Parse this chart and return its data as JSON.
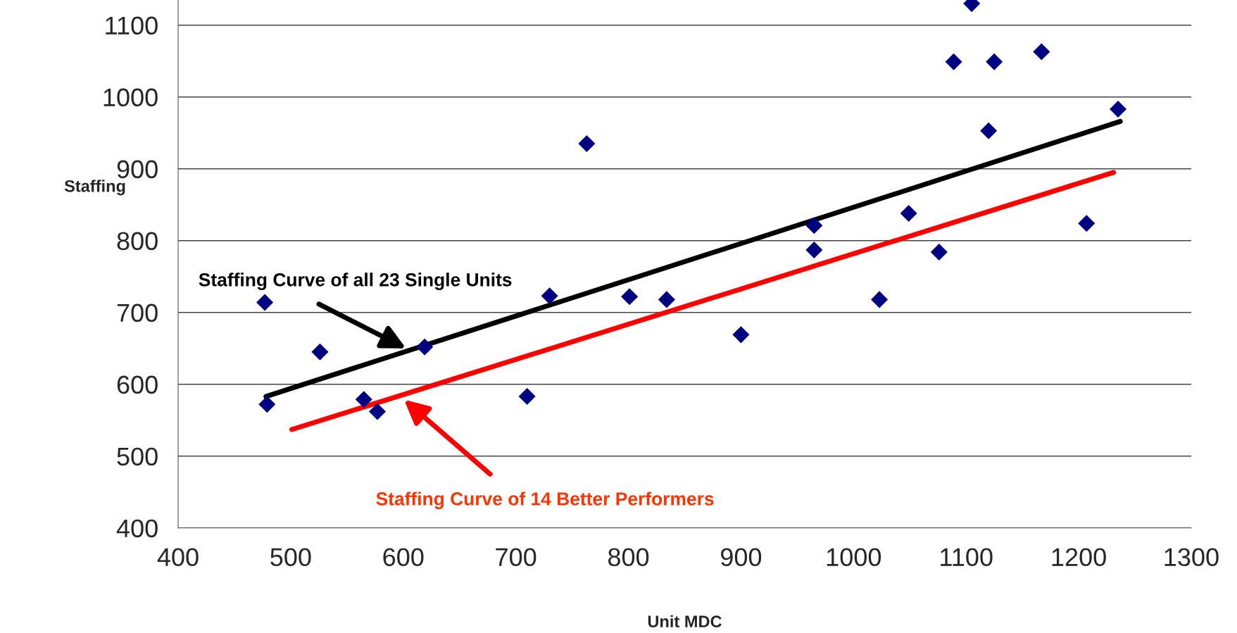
{
  "chart_data": {
    "type": "scatter",
    "xlabel": "Unit MDC",
    "ylabel": "Staffing",
    "xlim": [
      400,
      1300
    ],
    "xticks": [
      400,
      500,
      600,
      700,
      800,
      900,
      1000,
      1100,
      1200,
      1300
    ],
    "ylim": [
      400,
      1135
    ],
    "yticks": [
      400,
      500,
      600,
      700,
      800,
      900,
      1000,
      1100
    ],
    "grid": "y",
    "legend": false,
    "series": [
      {
        "color": "#000080",
        "marker": "diamond",
        "x": [
          477,
          479,
          526,
          565,
          577,
          619,
          710,
          730,
          763,
          801,
          834,
          900,
          965,
          965,
          1023,
          1049,
          1076,
          1089,
          1105,
          1120,
          1125,
          1167,
          1207,
          1235
        ],
        "values": [
          714,
          572,
          645,
          579,
          562,
          652,
          583,
          723,
          935,
          722,
          718,
          669,
          821,
          787,
          718,
          838,
          784,
          1049,
          1130,
          953,
          1049,
          1063,
          824,
          983
        ]
      },
      {
        "type": "line",
        "color": "#000000",
        "marker": "none",
        "line_style": "solid",
        "x": [
          478,
          1237
        ],
        "values": [
          583,
          966
        ]
      },
      {
        "type": "line",
        "color": "#ff0000",
        "marker": "none",
        "line_style": "solid",
        "x": [
          501,
          1231
        ],
        "values": [
          537,
          895
        ]
      }
    ],
    "annotations": [
      "Staffing Curve of all 23 Single Units",
      "Staffing Curve of 14 Better Performers"
    ]
  }
}
